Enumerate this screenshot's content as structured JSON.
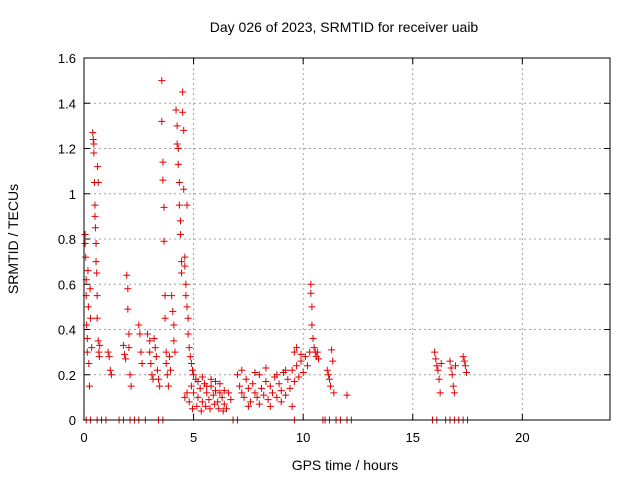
{
  "chart_data": {
    "type": "scatter",
    "title": "Day 026 of 2023, SRMTID for receiver uaib",
    "xlabel": "GPS time / hours",
    "ylabel": "SRMTID / TECUs",
    "xlim": [
      0,
      24
    ],
    "ylim": [
      0,
      1.6
    ],
    "xticks": [
      0,
      5,
      10,
      15,
      20
    ],
    "yticks": [
      0,
      0.2,
      0.4,
      0.6,
      0.8,
      1,
      1.2,
      1.4,
      1.6
    ],
    "xtick_labels": [
      "0",
      "5",
      "10",
      "15",
      "20"
    ],
    "ytick_labels": [
      "0",
      "0.2",
      "0.4",
      "0.6",
      "0.8",
      "1",
      "1.2",
      "1.4",
      "1.6"
    ],
    "grid": true,
    "marker": "plus",
    "color": "#e00000",
    "series": [
      {
        "name": "SRMTID",
        "points": [
          [
            0.05,
            0.82
          ],
          [
            0.05,
            0.78
          ],
          [
            0.08,
            0.72
          ],
          [
            0.1,
            0.62
          ],
          [
            0.1,
            0.55
          ],
          [
            0.12,
            0.42
          ],
          [
            0.15,
            0.36
          ],
          [
            0.15,
            0.3
          ],
          [
            0.18,
            0.66
          ],
          [
            0.2,
            0.5
          ],
          [
            0.22,
            0.25
          ],
          [
            0.25,
            0.15
          ],
          [
            0.28,
            0.58
          ],
          [
            0.3,
            0.45
          ],
          [
            0.35,
            0.32
          ],
          [
            0.4,
            1.27
          ],
          [
            0.42,
            1.24
          ],
          [
            0.45,
            1.22
          ],
          [
            0.45,
            1.18
          ],
          [
            0.48,
            1.05
          ],
          [
            0.5,
            0.95
          ],
          [
            0.5,
            0.9
          ],
          [
            0.52,
            0.85
          ],
          [
            0.55,
            0.78
          ],
          [
            0.55,
            0.7
          ],
          [
            0.58,
            0.65
          ],
          [
            0.6,
            0.55
          ],
          [
            0.6,
            0.45
          ],
          [
            0.62,
            1.12
          ],
          [
            0.65,
            1.05
          ],
          [
            0.65,
            0.35
          ],
          [
            0.68,
            0.3
          ],
          [
            0.7,
            0.28
          ],
          [
            0.72,
            0.33
          ],
          [
            1.1,
            0.3
          ],
          [
            1.15,
            0.28
          ],
          [
            1.2,
            0.22
          ],
          [
            1.25,
            0.2
          ],
          [
            1.8,
            0.33
          ],
          [
            1.85,
            0.29
          ],
          [
            1.9,
            0.27
          ],
          [
            1.95,
            0.64
          ],
          [
            2.0,
            0.58
          ],
          [
            2.0,
            0.49
          ],
          [
            2.05,
            0.38
          ],
          [
            2.05,
            0.32
          ],
          [
            2.1,
            0.2
          ],
          [
            2.15,
            0.15
          ],
          [
            2.5,
            0.42
          ],
          [
            2.55,
            0.38
          ],
          [
            2.6,
            0.3
          ],
          [
            2.65,
            0.25
          ],
          [
            2.9,
            0.38
          ],
          [
            3.0,
            0.35
          ],
          [
            3.0,
            0.3
          ],
          [
            3.05,
            0.25
          ],
          [
            3.1,
            0.2
          ],
          [
            3.15,
            0.18
          ],
          [
            3.2,
            0.36
          ],
          [
            3.25,
            0.32
          ],
          [
            3.3,
            0.28
          ],
          [
            3.35,
            0.22
          ],
          [
            3.4,
            0.18
          ],
          [
            3.45,
            0.15
          ],
          [
            3.55,
            1.5
          ],
          [
            3.55,
            1.32
          ],
          [
            3.6,
            1.14
          ],
          [
            3.6,
            1.06
          ],
          [
            3.65,
            0.94
          ],
          [
            3.65,
            0.79
          ],
          [
            3.7,
            0.55
          ],
          [
            3.7,
            0.45
          ],
          [
            3.75,
            0.3
          ],
          [
            3.75,
            0.25
          ],
          [
            3.8,
            0.2
          ],
          [
            3.85,
            0.15
          ],
          [
            3.9,
            0.28
          ],
          [
            3.95,
            0.22
          ],
          [
            4.0,
            0.55
          ],
          [
            4.05,
            0.48
          ],
          [
            4.1,
            0.42
          ],
          [
            4.1,
            0.35
          ],
          [
            4.15,
            0.3
          ],
          [
            4.2,
            1.37
          ],
          [
            4.25,
            1.3
          ],
          [
            4.25,
            1.22
          ],
          [
            4.3,
            1.2
          ],
          [
            4.3,
            1.13
          ],
          [
            4.35,
            1.05
          ],
          [
            4.35,
            0.95
          ],
          [
            4.4,
            0.88
          ],
          [
            4.4,
            0.82
          ],
          [
            4.45,
            0.7
          ],
          [
            4.45,
            0.65
          ],
          [
            4.5,
            1.45
          ],
          [
            4.5,
            1.36
          ],
          [
            4.55,
            1.28
          ],
          [
            4.55,
            1.02
          ],
          [
            4.6,
            0.72
          ],
          [
            4.6,
            0.68
          ],
          [
            4.65,
            0.6
          ],
          [
            4.65,
            0.55
          ],
          [
            4.7,
            0.95
          ],
          [
            4.7,
            0.5
          ],
          [
            4.75,
            0.45
          ],
          [
            4.75,
            0.38
          ],
          [
            4.8,
            0.32
          ],
          [
            4.85,
            0.28
          ],
          [
            4.9,
            0.25
          ],
          [
            4.95,
            0.22
          ],
          [
            4.6,
            0.1
          ],
          [
            4.7,
            0.12
          ],
          [
            4.8,
            0.08
          ],
          [
            4.9,
            0.15
          ],
          [
            5.0,
            0.12
          ],
          [
            5.1,
            0.18
          ],
          [
            5.2,
            0.1
          ],
          [
            5.3,
            0.14
          ],
          [
            5.4,
            0.08
          ],
          [
            5.5,
            0.16
          ],
          [
            5.6,
            0.12
          ],
          [
            5.7,
            0.09
          ],
          [
            5.8,
            0.15
          ],
          [
            5.9,
            0.11
          ],
          [
            6.0,
            0.13
          ],
          [
            6.1,
            0.08
          ],
          [
            6.2,
            0.12
          ],
          [
            6.3,
            0.1
          ],
          [
            6.4,
            0.07
          ],
          [
            6.5,
            0.05
          ],
          [
            6.6,
            0.12
          ],
          [
            6.7,
            0.09
          ],
          [
            5.0,
            0.2
          ],
          [
            5.2,
            0.17
          ],
          [
            5.4,
            0.19
          ],
          [
            5.6,
            0.15
          ],
          [
            5.8,
            0.18
          ],
          [
            6.0,
            0.17
          ],
          [
            6.2,
            0.16
          ],
          [
            6.4,
            0.13
          ],
          [
            4.95,
            0.05
          ],
          [
            5.15,
            0.06
          ],
          [
            5.35,
            0.04
          ],
          [
            5.55,
            0.06
          ],
          [
            5.75,
            0.05
          ],
          [
            5.95,
            0.07
          ],
          [
            6.15,
            0.05
          ],
          [
            6.35,
            0.04
          ],
          [
            7.0,
            0.2
          ],
          [
            7.1,
            0.15
          ],
          [
            7.2,
            0.12
          ],
          [
            7.3,
            0.1
          ],
          [
            7.4,
            0.18
          ],
          [
            7.5,
            0.14
          ],
          [
            7.6,
            0.08
          ],
          [
            7.7,
            0.16
          ],
          [
            7.8,
            0.12
          ],
          [
            7.9,
            0.1
          ],
          [
            8.0,
            0.2
          ],
          [
            8.1,
            0.14
          ],
          [
            8.2,
            0.11
          ],
          [
            8.3,
            0.17
          ],
          [
            8.4,
            0.09
          ],
          [
            8.5,
            0.15
          ],
          [
            8.6,
            0.12
          ],
          [
            8.7,
            0.19
          ],
          [
            8.8,
            0.1
          ],
          [
            8.9,
            0.16
          ],
          [
            9.0,
            0.13
          ],
          [
            9.1,
            0.21
          ],
          [
            9.2,
            0.11
          ],
          [
            9.3,
            0.18
          ],
          [
            9.4,
            0.14
          ],
          [
            9.5,
            0.22
          ],
          [
            9.6,
            0.17
          ],
          [
            9.7,
            0.24
          ],
          [
            9.8,
            0.19
          ],
          [
            9.9,
            0.26
          ],
          [
            10.0,
            0.21
          ],
          [
            10.1,
            0.28
          ],
          [
            10.2,
            0.24
          ],
          [
            10.3,
            0.3
          ],
          [
            7.5,
            0.06
          ],
          [
            8.0,
            0.07
          ],
          [
            8.5,
            0.06
          ],
          [
            9.0,
            0.08
          ],
          [
            9.5,
            0.06
          ],
          [
            7.2,
            0.22
          ],
          [
            7.8,
            0.21
          ],
          [
            8.3,
            0.23
          ],
          [
            8.8,
            0.2
          ],
          [
            9.2,
            0.22
          ],
          [
            9.6,
            0.3
          ],
          [
            9.7,
            0.32
          ],
          [
            9.9,
            0.29
          ],
          [
            10.35,
            0.6
          ],
          [
            10.35,
            0.56
          ],
          [
            10.4,
            0.5
          ],
          [
            10.4,
            0.42
          ],
          [
            10.45,
            0.36
          ],
          [
            10.5,
            0.32
          ],
          [
            10.55,
            0.3
          ],
          [
            10.6,
            0.28
          ],
          [
            10.65,
            0.3
          ],
          [
            10.7,
            0.27
          ],
          [
            11.1,
            0.22
          ],
          [
            11.15,
            0.2
          ],
          [
            11.2,
            0.18
          ],
          [
            11.25,
            0.15
          ],
          [
            11.3,
            0.31
          ],
          [
            11.35,
            0.26
          ],
          [
            11.4,
            0.12
          ],
          [
            12.0,
            0.11
          ],
          [
            16.0,
            0.3
          ],
          [
            16.05,
            0.27
          ],
          [
            16.1,
            0.24
          ],
          [
            16.15,
            0.22
          ],
          [
            16.2,
            0.18
          ],
          [
            16.25,
            0.12
          ],
          [
            16.3,
            0.25
          ],
          [
            16.7,
            0.26
          ],
          [
            16.75,
            0.23
          ],
          [
            16.8,
            0.2
          ],
          [
            16.85,
            0.15
          ],
          [
            16.9,
            0.12
          ],
          [
            16.95,
            0.24
          ],
          [
            17.3,
            0.28
          ],
          [
            17.35,
            0.26
          ],
          [
            17.4,
            0.24
          ],
          [
            17.45,
            0.21
          ],
          [
            0.1,
            0.0
          ],
          [
            0.3,
            0.0
          ],
          [
            0.6,
            0.0
          ],
          [
            0.8,
            0.0
          ],
          [
            1.0,
            0.0
          ],
          [
            1.6,
            0.0
          ],
          [
            1.8,
            0.0
          ],
          [
            2.1,
            0.0
          ],
          [
            2.3,
            0.0
          ],
          [
            2.5,
            0.0
          ],
          [
            2.8,
            0.0
          ],
          [
            3.4,
            0.0
          ],
          [
            3.6,
            0.0
          ],
          [
            6.8,
            0.0
          ],
          [
            7.0,
            0.0
          ],
          [
            9.6,
            0.0
          ],
          [
            10.9,
            0.0
          ],
          [
            11.0,
            0.0
          ],
          [
            11.2,
            0.0
          ],
          [
            11.5,
            0.0
          ],
          [
            11.7,
            0.0
          ],
          [
            12.0,
            0.0
          ],
          [
            12.2,
            0.0
          ],
          [
            15.9,
            0.0
          ],
          [
            16.1,
            0.0
          ],
          [
            16.5,
            0.0
          ],
          [
            16.7,
            0.0
          ],
          [
            16.9,
            0.0
          ],
          [
            17.1,
            0.0
          ],
          [
            17.3,
            0.0
          ],
          [
            17.5,
            0.0
          ]
        ]
      }
    ]
  }
}
